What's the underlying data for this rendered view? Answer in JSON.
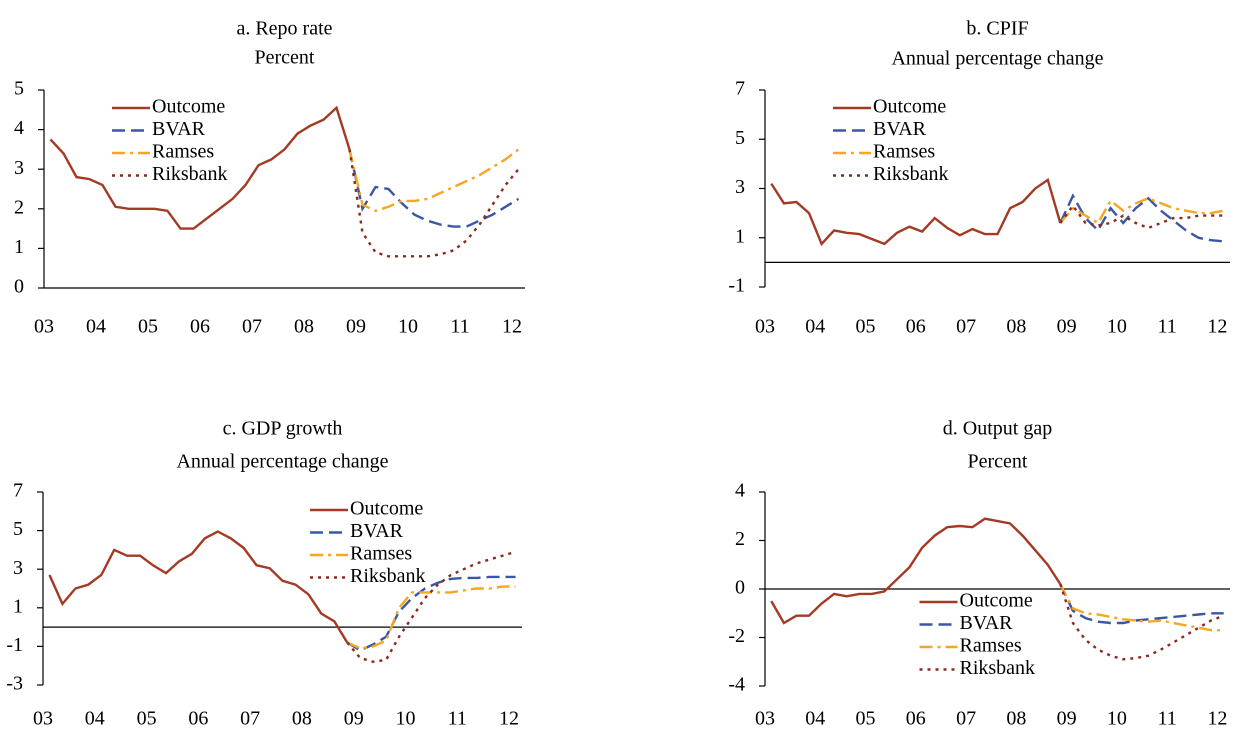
{
  "chart_data": [
    {
      "type": "line",
      "title": "a. Repo rate",
      "subtitle": "Percent",
      "legend": "upper left",
      "zero_line": true,
      "x": [
        3.125,
        3.375,
        3.625,
        3.875,
        4.125,
        4.375,
        4.625,
        4.875,
        5.125,
        5.375,
        5.625,
        5.875,
        6.125,
        6.375,
        6.625,
        6.875,
        7.125,
        7.375,
        7.625,
        7.875,
        8.125,
        8.375,
        8.625,
        8.875,
        9.125,
        9.375,
        9.625,
        9.875,
        10.125,
        10.375,
        10.625,
        10.875,
        11.125,
        11.375,
        11.625,
        11.875,
        12.125
      ],
      "xlim": [
        3,
        12.25
      ],
      "xticks": [
        {
          "value": 3,
          "label": "03"
        },
        {
          "value": 4,
          "label": "04"
        },
        {
          "value": 5,
          "label": "05"
        },
        {
          "value": 6,
          "label": "06"
        },
        {
          "value": 7,
          "label": "07"
        },
        {
          "value": 8,
          "label": "08"
        },
        {
          "value": 9,
          "label": "09"
        },
        {
          "value": 10,
          "label": "10"
        },
        {
          "value": 11,
          "label": "11"
        },
        {
          "value": 12,
          "label": "12"
        }
      ],
      "ylim": [
        0,
        5
      ],
      "yticks": [
        0,
        1,
        2,
        3,
        4,
        5
      ],
      "series": [
        {
          "name": "Outcome",
          "color": "#a33a24",
          "dash": "solid",
          "values": [
            3.75,
            3.4,
            2.8,
            2.75,
            2.6,
            2.05,
            2.0,
            2.0,
            2.0,
            1.95,
            1.5,
            1.5,
            1.75,
            2.0,
            2.25,
            2.6,
            3.1,
            3.25,
            3.5,
            3.9,
            4.1,
            4.25,
            4.55,
            3.5,
            null,
            null,
            null,
            null,
            null,
            null,
            null,
            null,
            null,
            null,
            null,
            null,
            null
          ]
        },
        {
          "name": "BVAR",
          "color": "#3a56a6",
          "dash": "dash",
          "values": [
            null,
            null,
            null,
            null,
            null,
            null,
            null,
            null,
            null,
            null,
            null,
            null,
            null,
            null,
            null,
            null,
            null,
            null,
            null,
            null,
            null,
            null,
            null,
            3.5,
            2.0,
            2.55,
            2.5,
            2.15,
            1.85,
            1.7,
            1.6,
            1.55,
            1.55,
            1.7,
            1.85,
            2.05,
            2.25
          ]
        },
        {
          "name": "Ramses",
          "color": "#f5a623",
          "dash": "dashdot",
          "values": [
            null,
            null,
            null,
            null,
            null,
            null,
            null,
            null,
            null,
            null,
            null,
            null,
            null,
            null,
            null,
            null,
            null,
            null,
            null,
            null,
            null,
            null,
            null,
            3.5,
            2.1,
            1.95,
            2.05,
            2.2,
            2.2,
            2.25,
            2.4,
            2.55,
            2.7,
            2.85,
            3.05,
            3.25,
            3.5
          ]
        },
        {
          "name": "Riksbank",
          "color": "#8b2a1c",
          "dash": "dot",
          "values": [
            null,
            null,
            null,
            null,
            null,
            null,
            null,
            null,
            null,
            null,
            null,
            null,
            null,
            null,
            null,
            null,
            null,
            null,
            null,
            null,
            null,
            null,
            null,
            3.5,
            1.4,
            0.9,
            0.8,
            0.8,
            0.8,
            0.8,
            0.85,
            0.95,
            1.2,
            1.6,
            2.1,
            2.6,
            3.0
          ]
        }
      ]
    },
    {
      "type": "line",
      "title": "b. CPIF",
      "subtitle": "Annual percentage change",
      "legend": "upper left",
      "zero_line": true,
      "x": [
        3.125,
        3.375,
        3.625,
        3.875,
        4.125,
        4.375,
        4.625,
        4.875,
        5.125,
        5.375,
        5.625,
        5.875,
        6.125,
        6.375,
        6.625,
        6.875,
        7.125,
        7.375,
        7.625,
        7.875,
        8.125,
        8.375,
        8.625,
        8.875,
        9.125,
        9.375,
        9.625,
        9.875,
        10.125,
        10.375,
        10.625,
        10.875,
        11.125,
        11.375,
        11.625,
        11.875,
        12.125
      ],
      "xlim": [
        3,
        12.25
      ],
      "xticks": [
        {
          "value": 3,
          "label": "03"
        },
        {
          "value": 4,
          "label": "04"
        },
        {
          "value": 5,
          "label": "05"
        },
        {
          "value": 6,
          "label": "06"
        },
        {
          "value": 7,
          "label": "07"
        },
        {
          "value": 8,
          "label": "08"
        },
        {
          "value": 9,
          "label": "09"
        },
        {
          "value": 10,
          "label": "10"
        },
        {
          "value": 11,
          "label": "11"
        },
        {
          "value": 12,
          "label": "12"
        }
      ],
      "ylim": [
        -1,
        7
      ],
      "yticks": [
        -1,
        1,
        3,
        5,
        7
      ],
      "series": [
        {
          "name": "Outcome",
          "color": "#a33a24",
          "dash": "solid",
          "values": [
            3.2,
            2.4,
            2.45,
            2.0,
            0.75,
            1.3,
            1.2,
            1.15,
            0.95,
            0.75,
            1.2,
            1.45,
            1.25,
            1.8,
            1.4,
            1.1,
            1.35,
            1.15,
            1.15,
            2.2,
            2.45,
            3.0,
            3.35,
            1.6,
            null,
            null,
            null,
            null,
            null,
            null,
            null,
            null,
            null,
            null,
            null,
            null,
            null
          ]
        },
        {
          "name": "BVAR",
          "color": "#3a56a6",
          "dash": "dash",
          "values": [
            null,
            null,
            null,
            null,
            null,
            null,
            null,
            null,
            null,
            null,
            null,
            null,
            null,
            null,
            null,
            null,
            null,
            null,
            null,
            null,
            null,
            null,
            null,
            1.6,
            2.7,
            1.8,
            1.3,
            2.2,
            1.6,
            2.2,
            2.6,
            2.1,
            1.7,
            1.3,
            1.0,
            0.9,
            0.85
          ]
        },
        {
          "name": "Ramses",
          "color": "#f5a623",
          "dash": "dashdot",
          "values": [
            null,
            null,
            null,
            null,
            null,
            null,
            null,
            null,
            null,
            null,
            null,
            null,
            null,
            null,
            null,
            null,
            null,
            null,
            null,
            null,
            null,
            null,
            null,
            1.6,
            2.2,
            1.9,
            1.6,
            2.5,
            2.1,
            2.4,
            2.6,
            2.4,
            2.2,
            2.1,
            2.0,
            2.0,
            2.1
          ]
        },
        {
          "name": "Riksbank",
          "color": "#8b2a1c",
          "dash": "dot",
          "values": [
            null,
            null,
            null,
            null,
            null,
            null,
            null,
            null,
            null,
            null,
            null,
            null,
            null,
            null,
            null,
            null,
            null,
            null,
            null,
            null,
            null,
            null,
            null,
            1.6,
            2.3,
            1.6,
            1.5,
            1.6,
            1.9,
            1.6,
            1.4,
            1.6,
            1.8,
            1.8,
            1.9,
            1.9,
            1.9
          ]
        }
      ]
    },
    {
      "type": "line",
      "title": "c. GDP growth",
      "subtitle": "Annual percentage change",
      "legend": "upper right",
      "zero_line": true,
      "x": [
        3.125,
        3.375,
        3.625,
        3.875,
        4.125,
        4.375,
        4.625,
        4.875,
        5.125,
        5.375,
        5.625,
        5.875,
        6.125,
        6.375,
        6.625,
        6.875,
        7.125,
        7.375,
        7.625,
        7.875,
        8.125,
        8.375,
        8.625,
        8.875,
        9.125,
        9.375,
        9.625,
        9.875,
        10.125,
        10.375,
        10.625,
        10.875,
        11.125,
        11.375,
        11.625,
        11.875,
        12.125
      ],
      "xlim": [
        3,
        12.25
      ],
      "xticks": [
        {
          "value": 3,
          "label": "03"
        },
        {
          "value": 4,
          "label": "04"
        },
        {
          "value": 5,
          "label": "05"
        },
        {
          "value": 6,
          "label": "06"
        },
        {
          "value": 7,
          "label": "07"
        },
        {
          "value": 8,
          "label": "08"
        },
        {
          "value": 9,
          "label": "09"
        },
        {
          "value": 10,
          "label": "10"
        },
        {
          "value": 11,
          "label": "11"
        },
        {
          "value": 12,
          "label": "12"
        }
      ],
      "ylim": [
        -3,
        7
      ],
      "yticks": [
        -3,
        -1,
        1,
        3,
        5,
        7
      ],
      "series": [
        {
          "name": "Outcome",
          "color": "#a33a24",
          "dash": "solid",
          "values": [
            2.7,
            1.2,
            2.0,
            2.2,
            2.7,
            4.0,
            3.7,
            3.7,
            3.2,
            2.8,
            3.4,
            3.8,
            4.6,
            4.95,
            4.6,
            4.1,
            3.2,
            3.05,
            2.4,
            2.2,
            1.7,
            0.7,
            0.3,
            -0.8,
            null,
            null,
            null,
            null,
            null,
            null,
            null,
            null,
            null,
            null,
            null,
            null,
            null
          ]
        },
        {
          "name": "BVAR",
          "color": "#3a56a6",
          "dash": "dash",
          "values": [
            null,
            null,
            null,
            null,
            null,
            null,
            null,
            null,
            null,
            null,
            null,
            null,
            null,
            null,
            null,
            null,
            null,
            null,
            null,
            null,
            null,
            null,
            null,
            -0.8,
            -1.2,
            -0.9,
            -0.5,
            0.8,
            1.5,
            2.0,
            2.3,
            2.5,
            2.55,
            2.55,
            2.6,
            2.6,
            2.6
          ]
        },
        {
          "name": "Ramses",
          "color": "#f5a623",
          "dash": "dashdot",
          "values": [
            null,
            null,
            null,
            null,
            null,
            null,
            null,
            null,
            null,
            null,
            null,
            null,
            null,
            null,
            null,
            null,
            null,
            null,
            null,
            null,
            null,
            null,
            null,
            -0.8,
            -1.1,
            -1.0,
            -0.7,
            1.0,
            1.8,
            1.8,
            1.8,
            1.8,
            1.9,
            2.0,
            2.0,
            2.1,
            2.1
          ]
        },
        {
          "name": "Riksbank",
          "color": "#8b2a1c",
          "dash": "dot",
          "values": [
            null,
            null,
            null,
            null,
            null,
            null,
            null,
            null,
            null,
            null,
            null,
            null,
            null,
            null,
            null,
            null,
            null,
            null,
            null,
            null,
            null,
            null,
            null,
            -0.8,
            -1.6,
            -1.8,
            -1.7,
            -0.5,
            0.5,
            1.5,
            2.2,
            2.7,
            3.0,
            3.3,
            3.5,
            3.7,
            3.9
          ]
        }
      ]
    },
    {
      "type": "line",
      "title": "d. Output gap",
      "subtitle": "Percent",
      "legend": "lower center",
      "zero_line": true,
      "x": [
        3.125,
        3.375,
        3.625,
        3.875,
        4.125,
        4.375,
        4.625,
        4.875,
        5.125,
        5.375,
        5.625,
        5.875,
        6.125,
        6.375,
        6.625,
        6.875,
        7.125,
        7.375,
        7.625,
        7.875,
        8.125,
        8.375,
        8.625,
        8.875,
        9.125,
        9.375,
        9.625,
        9.875,
        10.125,
        10.375,
        10.625,
        10.875,
        11.125,
        11.375,
        11.625,
        11.875,
        12.125
      ],
      "xlim": [
        3,
        12.25
      ],
      "xticks": [
        {
          "value": 3,
          "label": "03"
        },
        {
          "value": 4,
          "label": "04"
        },
        {
          "value": 5,
          "label": "05"
        },
        {
          "value": 6,
          "label": "06"
        },
        {
          "value": 7,
          "label": "07"
        },
        {
          "value": 8,
          "label": "08"
        },
        {
          "value": 9,
          "label": "09"
        },
        {
          "value": 10,
          "label": "10"
        },
        {
          "value": 11,
          "label": "11"
        },
        {
          "value": 12,
          "label": "12"
        }
      ],
      "ylim": [
        -4,
        4
      ],
      "yticks": [
        -4,
        -2,
        0,
        2,
        4
      ],
      "series": [
        {
          "name": "Outcome",
          "color": "#a33a24",
          "dash": "solid",
          "values": [
            -0.5,
            -1.4,
            -1.1,
            -1.1,
            -0.6,
            -0.2,
            -0.3,
            -0.2,
            -0.2,
            -0.1,
            0.4,
            0.9,
            1.7,
            2.2,
            2.55,
            2.6,
            2.55,
            2.9,
            2.8,
            2.7,
            2.2,
            1.6,
            1.0,
            0.2,
            null,
            null,
            null,
            null,
            null,
            null,
            null,
            null,
            null,
            null,
            null,
            null,
            null
          ]
        },
        {
          "name": "BVAR",
          "color": "#3a56a6",
          "dash": "dash",
          "values": [
            null,
            null,
            null,
            null,
            null,
            null,
            null,
            null,
            null,
            null,
            null,
            null,
            null,
            null,
            null,
            null,
            null,
            null,
            null,
            null,
            null,
            null,
            null,
            0.2,
            -0.9,
            -1.2,
            -1.35,
            -1.4,
            -1.4,
            -1.3,
            -1.25,
            -1.2,
            -1.15,
            -1.1,
            -1.05,
            -1.0,
            -1.0
          ]
        },
        {
          "name": "Ramses",
          "color": "#f5a623",
          "dash": "dashdot",
          "values": [
            null,
            null,
            null,
            null,
            null,
            null,
            null,
            null,
            null,
            null,
            null,
            null,
            null,
            null,
            null,
            null,
            null,
            null,
            null,
            null,
            null,
            null,
            null,
            0.2,
            -0.8,
            -1.0,
            -1.05,
            -1.15,
            -1.25,
            -1.3,
            -1.35,
            -1.3,
            -1.4,
            -1.5,
            -1.6,
            -1.7,
            -1.7
          ]
        },
        {
          "name": "Riksbank",
          "color": "#8b2a1c",
          "dash": "dot",
          "values": [
            null,
            null,
            null,
            null,
            null,
            null,
            null,
            null,
            null,
            null,
            null,
            null,
            null,
            null,
            null,
            null,
            null,
            null,
            null,
            null,
            null,
            null,
            null,
            0.2,
            -1.4,
            -2.1,
            -2.5,
            -2.75,
            -2.9,
            -2.85,
            -2.75,
            -2.5,
            -2.2,
            -1.9,
            -1.6,
            -1.3,
            -1.1
          ]
        }
      ]
    }
  ]
}
